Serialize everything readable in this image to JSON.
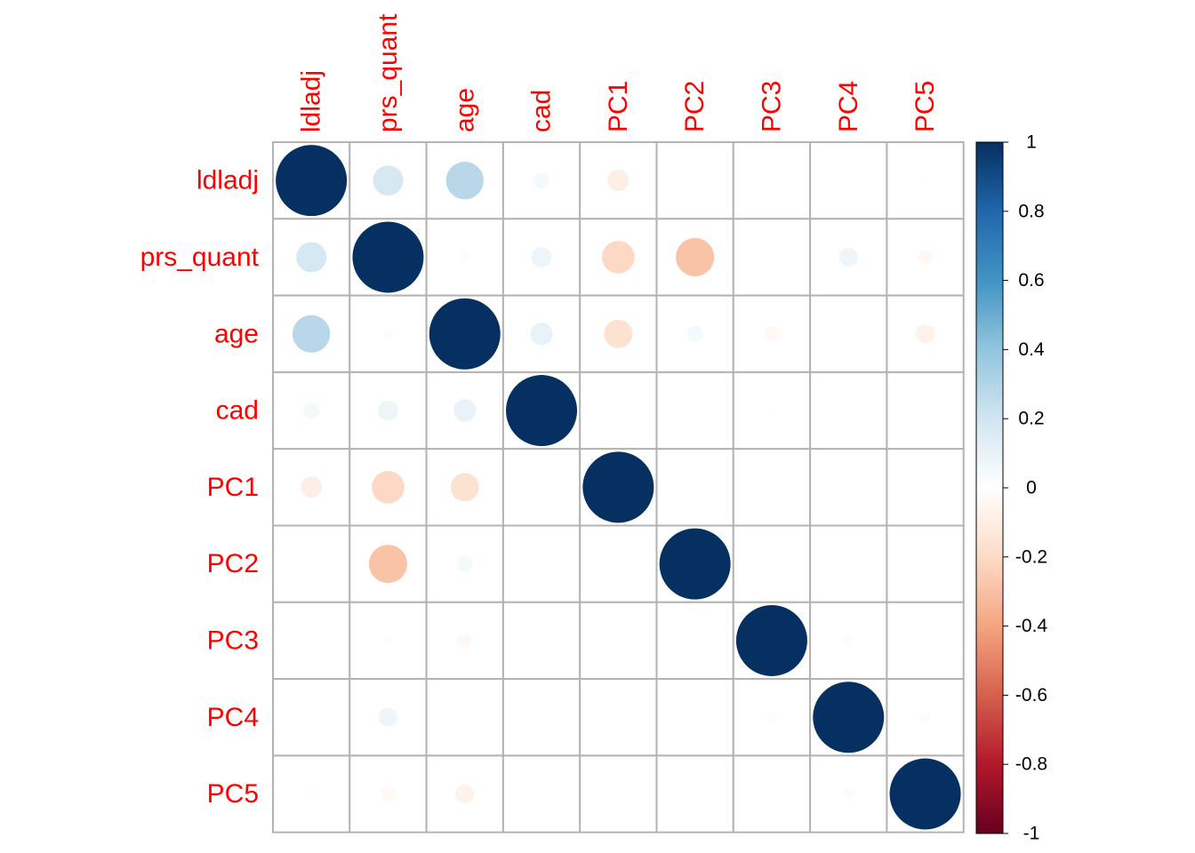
{
  "chart_data": {
    "type": "heatmap",
    "variables": [
      "ldladj",
      "prs_quant",
      "age",
      "cad",
      "PC1",
      "PC2",
      "PC3",
      "PC4",
      "PC5"
    ],
    "matrix": [
      [
        1.0,
        0.18,
        0.28,
        0.05,
        -0.09,
        0.0,
        0.0,
        0.0,
        -0.01
      ],
      [
        0.18,
        1.0,
        -0.02,
        0.08,
        -0.21,
        -0.29,
        0.0,
        0.07,
        -0.04
      ],
      [
        0.28,
        -0.02,
        1.0,
        0.1,
        -0.16,
        0.05,
        -0.04,
        0.0,
        -0.07
      ],
      [
        0.05,
        0.08,
        0.1,
        1.0,
        0.0,
        0.0,
        0.01,
        0.0,
        0.0
      ],
      [
        -0.09,
        -0.21,
        -0.16,
        0.0,
        1.0,
        0.0,
        0.0,
        0.0,
        0.0
      ],
      [
        0.0,
        -0.29,
        0.05,
        0.0,
        0.0,
        1.0,
        0.0,
        0.0,
        0.0
      ],
      [
        0.0,
        -0.01,
        -0.04,
        0.01,
        0.0,
        0.0,
        1.0,
        0.02,
        0.0
      ],
      [
        0.0,
        0.07,
        0.0,
        0.0,
        0.0,
        0.0,
        -0.02,
        1.0,
        0.02
      ],
      [
        -0.01,
        -0.04,
        -0.07,
        0.0,
        0.0,
        0.0,
        0.0,
        0.02,
        1.0
      ]
    ],
    "colorbar": {
      "range": [
        -1,
        1
      ],
      "ticks": [
        "1",
        "0.8",
        "0.6",
        "0.4",
        "0.2",
        "0",
        "-0.2",
        "-0.4",
        "-0.6",
        "-0.8",
        "-1"
      ],
      "stops": [
        {
          "value": -1.0,
          "color": "#67001f"
        },
        {
          "value": -0.8,
          "color": "#b2182b"
        },
        {
          "value": -0.6,
          "color": "#d6604d"
        },
        {
          "value": -0.4,
          "color": "#f4a582"
        },
        {
          "value": -0.2,
          "color": "#fddbc7"
        },
        {
          "value": 0.0,
          "color": "#ffffff"
        },
        {
          "value": 0.2,
          "color": "#d1e5f0"
        },
        {
          "value": 0.4,
          "color": "#92c5de"
        },
        {
          "value": 0.6,
          "color": "#4393c3"
        },
        {
          "value": 0.8,
          "color": "#2166ac"
        },
        {
          "value": 1.0,
          "color": "#053061"
        }
      ]
    },
    "label_color": "#ff0000",
    "grid_color": "#b3b3b3",
    "grid": true,
    "legend": "right"
  }
}
